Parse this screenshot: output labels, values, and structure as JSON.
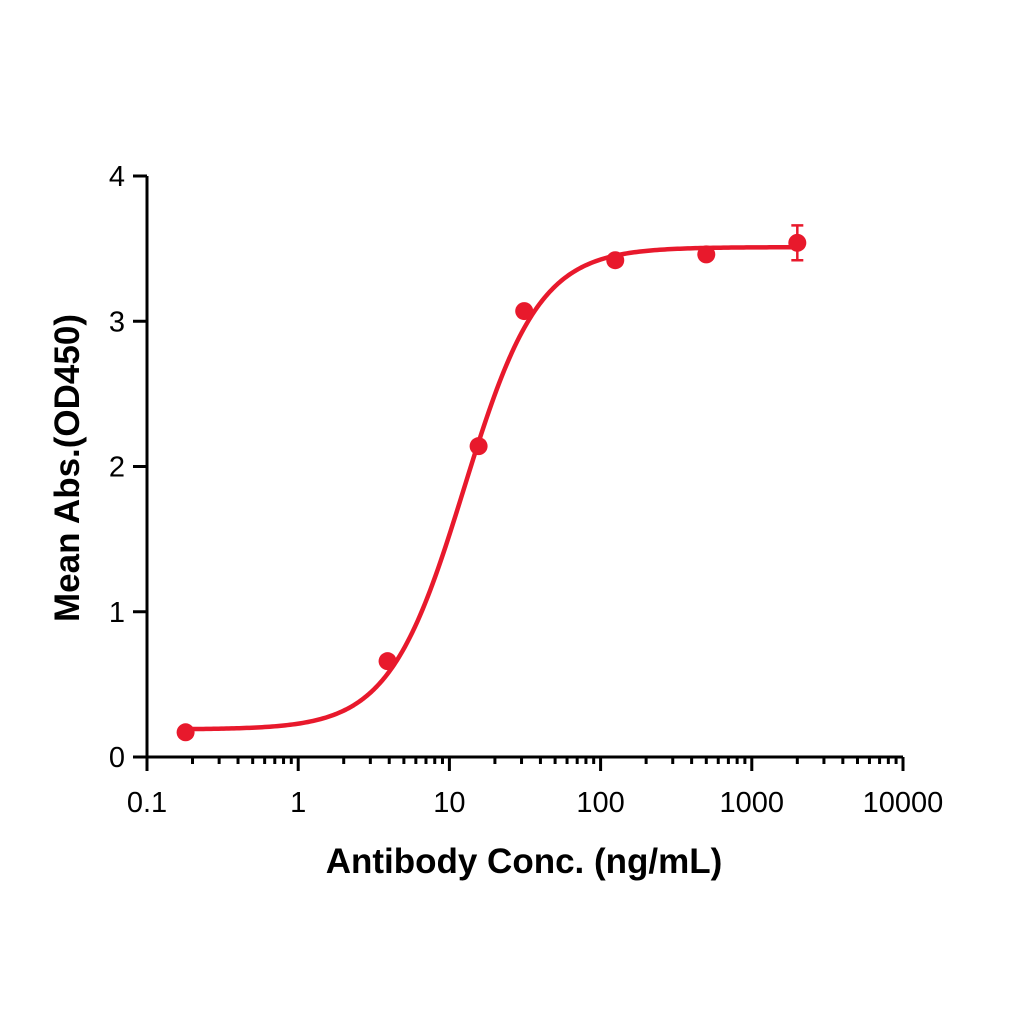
{
  "chart_data": {
    "type": "scatter",
    "title": "",
    "xlabel": "Antibody Conc. (ng/mL)",
    "ylabel": "Mean Abs.(OD450)",
    "x_scale": "log",
    "xlim": [
      0.1,
      10000
    ],
    "ylim": [
      0,
      4
    ],
    "x_ticks": [
      0.1,
      1,
      10,
      100,
      1000,
      10000
    ],
    "x_tick_labels": [
      "0.1",
      "1",
      "10",
      "100",
      "1000",
      "10000"
    ],
    "y_ticks": [
      0,
      1,
      2,
      3,
      4
    ],
    "y_tick_labels": [
      "0",
      "1",
      "2",
      "3",
      "4"
    ],
    "grid": false,
    "legend": false,
    "color": "#e8192c",
    "series": [
      {
        "points": [
          {
            "x": 0.18,
            "y": 0.17
          },
          {
            "x": 3.9,
            "y": 0.66
          },
          {
            "x": 15.6,
            "y": 2.14
          },
          {
            "x": 31.25,
            "y": 3.07
          },
          {
            "x": 125,
            "y": 3.42
          },
          {
            "x": 500,
            "y": 3.46
          },
          {
            "x": 2000,
            "y": 3.54,
            "error": 0.12
          }
        ],
        "fit": {
          "model": "4PL",
          "bottom": 0.19,
          "top": 3.51,
          "ec50": 12.5,
          "hill": 1.75
        }
      }
    ]
  }
}
